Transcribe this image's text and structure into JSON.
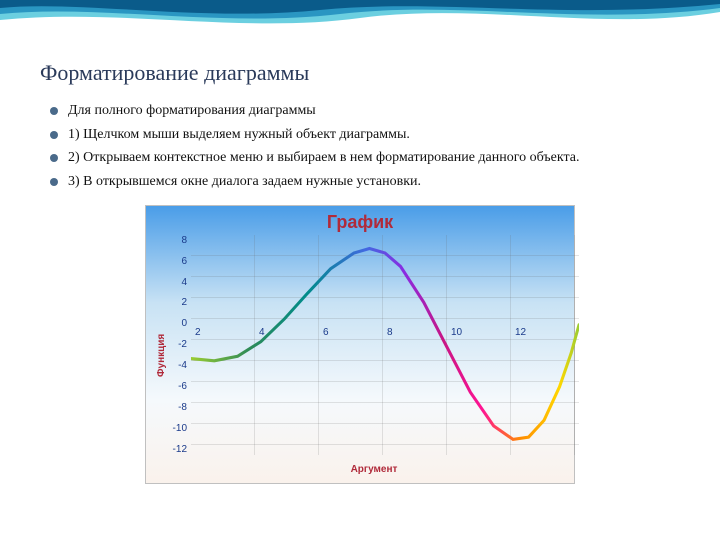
{
  "slide": {
    "title": "Форматирование диаграммы",
    "bullets": [
      "Для полного форматирования диаграммы",
      "1) Щелчком мыши  выделяем нужный объект диаграммы.",
      "2) Открываем контекстное меню и выбираем в нем форматирование данного объекта.",
      "3) В открывшемся окне диалога задаем нужные установки."
    ]
  },
  "wave_decoration": {
    "colors": [
      "#6bcfe0",
      "#2a96c2",
      "#0a5b8a"
    ]
  },
  "chart": {
    "type": "line",
    "title": "График",
    "title_color": "#b02a3a",
    "title_fontsize": 18,
    "xlabel": "Аргумент",
    "ylabel": "Функция",
    "label_color": "#b02a3a",
    "label_fontsize": 10,
    "tick_color": "#1a3a8a",
    "background_gradient": [
      "#4a9de8",
      "#c8e2f4",
      "#f5f9fc",
      "#faf2ec"
    ],
    "grid_color": "rgba(100,100,100,0.35)",
    "xlim": [
      2,
      12
    ],
    "ylim": [
      -12,
      8
    ],
    "xticks": [
      2,
      4,
      6,
      8,
      10,
      12
    ],
    "yticks": [
      8,
      6,
      4,
      2,
      0,
      -2,
      -4,
      -6,
      -8,
      -10,
      -12
    ],
    "line_width": 3,
    "line_gradient_stops": [
      {
        "offset": 0.0,
        "color": "#9acd32"
      },
      {
        "offset": 0.15,
        "color": "#2e8b57"
      },
      {
        "offset": 0.3,
        "color": "#008b8b"
      },
      {
        "offset": 0.45,
        "color": "#4169e1"
      },
      {
        "offset": 0.55,
        "color": "#8a2be2"
      },
      {
        "offset": 0.65,
        "color": "#c71585"
      },
      {
        "offset": 0.75,
        "color": "#ff1493"
      },
      {
        "offset": 0.85,
        "color": "#ff8c00"
      },
      {
        "offset": 0.95,
        "color": "#ffd700"
      },
      {
        "offset": 1.0,
        "color": "#9acd32"
      }
    ],
    "data": [
      {
        "x": 2.0,
        "y": -3.0
      },
      {
        "x": 2.6,
        "y": -3.2
      },
      {
        "x": 3.2,
        "y": -2.8
      },
      {
        "x": 3.8,
        "y": -1.5
      },
      {
        "x": 4.4,
        "y": 0.5
      },
      {
        "x": 5.0,
        "y": 2.8
      },
      {
        "x": 5.6,
        "y": 5.0
      },
      {
        "x": 6.2,
        "y": 6.4
      },
      {
        "x": 6.6,
        "y": 6.8
      },
      {
        "x": 7.0,
        "y": 6.4
      },
      {
        "x": 7.4,
        "y": 5.2
      },
      {
        "x": 8.0,
        "y": 2.0
      },
      {
        "x": 8.6,
        "y": -2.0
      },
      {
        "x": 9.2,
        "y": -6.0
      },
      {
        "x": 9.8,
        "y": -9.0
      },
      {
        "x": 10.3,
        "y": -10.2
      },
      {
        "x": 10.7,
        "y": -10.0
      },
      {
        "x": 11.1,
        "y": -8.5
      },
      {
        "x": 11.5,
        "y": -5.5
      },
      {
        "x": 11.8,
        "y": -2.5
      },
      {
        "x": 12.0,
        "y": 0.0
      }
    ]
  }
}
